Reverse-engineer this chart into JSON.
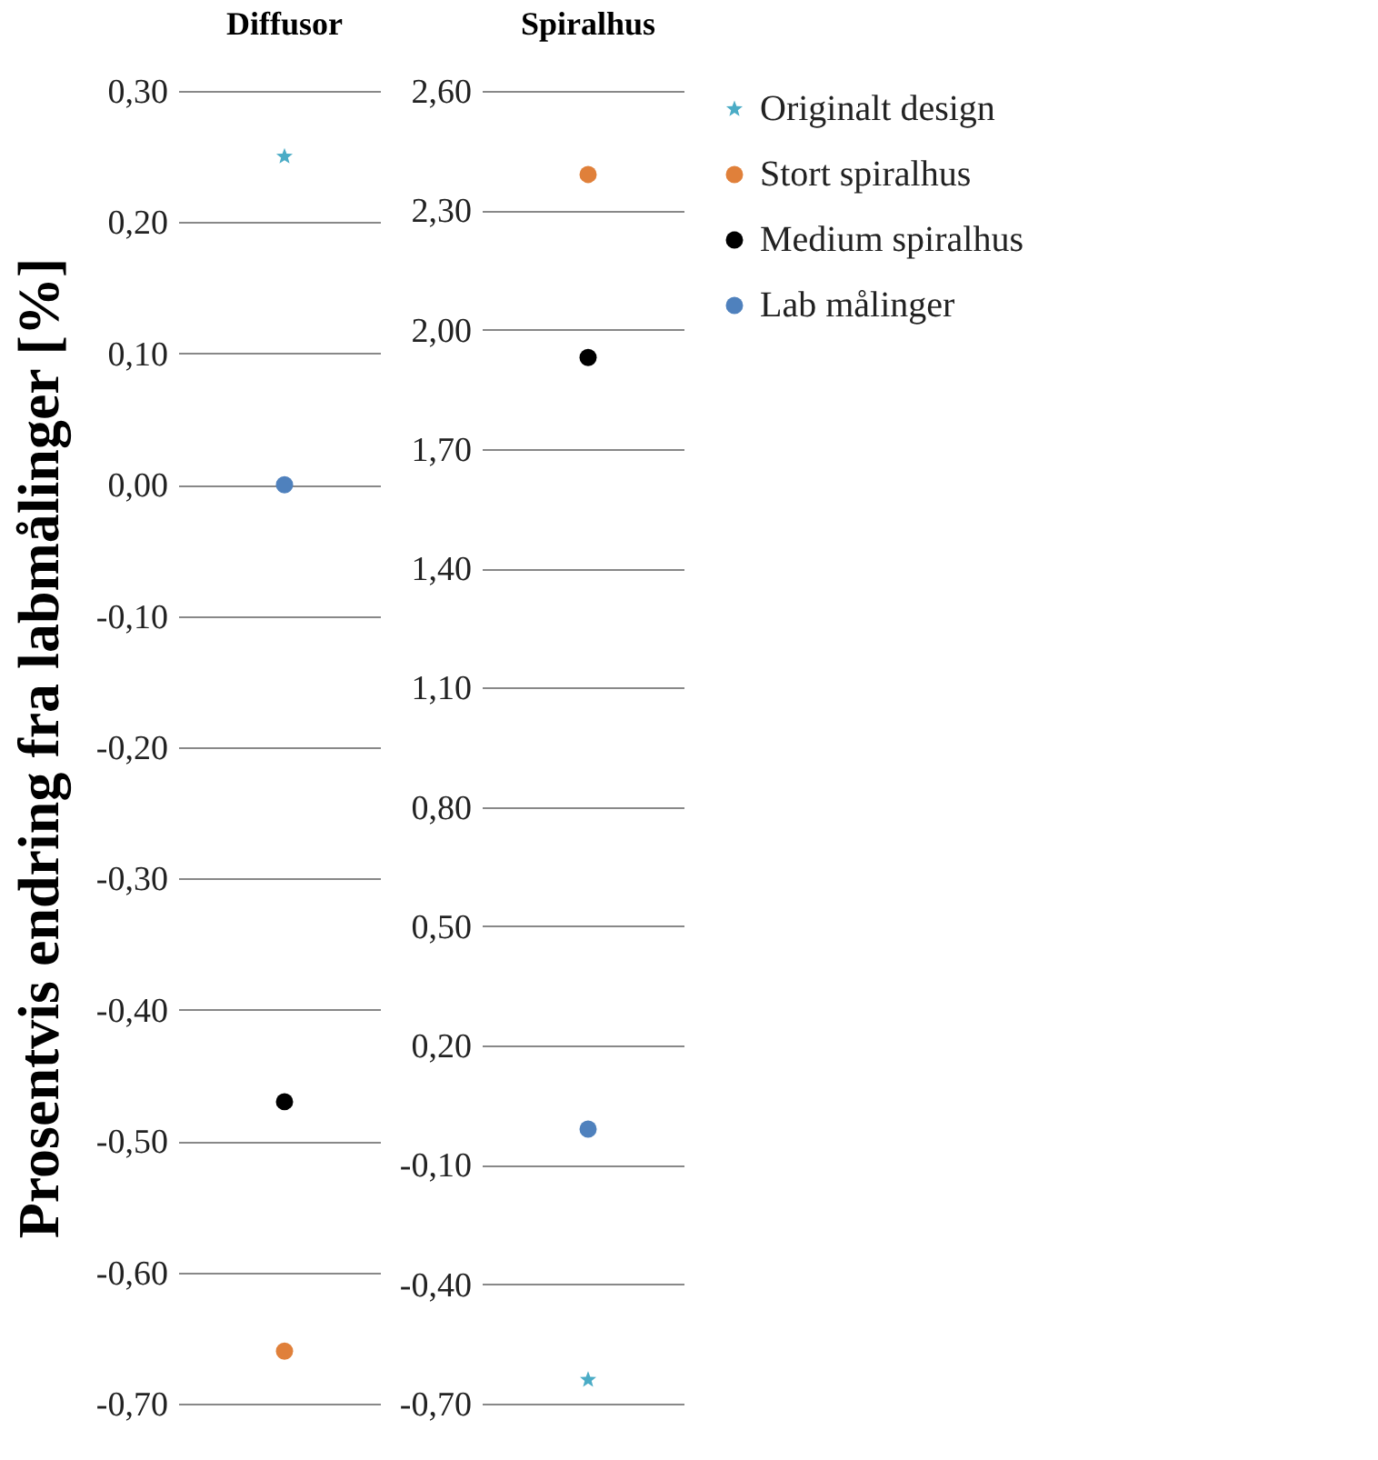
{
  "chart_data": [
    {
      "type": "scatter",
      "title": "Diffusor",
      "ylabel": "Prosentvis endring fra labmålinger [%]",
      "categories": [
        null
      ],
      "ylim": [
        -0.7,
        0.3
      ],
      "yticks": [
        {
          "value": 0.3,
          "label": "0,30"
        },
        {
          "value": 0.2,
          "label": "0,20"
        },
        {
          "value": 0.1,
          "label": "0,10"
        },
        {
          "value": 0,
          "label": "0,00"
        },
        {
          "value": -0.1,
          "label": "-0,10"
        },
        {
          "value": -0.2,
          "label": "-0,20"
        },
        {
          "value": -0.3,
          "label": "-0,30"
        },
        {
          "value": -0.4,
          "label": "-0,40"
        },
        {
          "value": -0.5,
          "label": "-0,50"
        },
        {
          "value": -0.6,
          "label": "-0,60"
        },
        {
          "value": -0.7,
          "label": "-0,70"
        }
      ],
      "grid": "y",
      "series": [
        {
          "color": "#4bacc6",
          "marker": "star",
          "values": [
            0.25
          ]
        },
        {
          "color": "#e0803a",
          "marker": "circle",
          "values": [
            -0.66
          ]
        },
        {
          "color": "#000000",
          "marker": "circle",
          "values": [
            -0.47
          ]
        },
        {
          "color": "#4f81bd",
          "marker": "circle",
          "values": [
            0.0
          ]
        }
      ]
    },
    {
      "type": "scatter",
      "title": "Spiralhus",
      "categories": [
        null
      ],
      "ylim": [
        -0.7,
        2.6
      ],
      "yticks": [
        {
          "value": 2.6,
          "label": "2,60"
        },
        {
          "value": 2.3,
          "label": "2,30"
        },
        {
          "value": 2.0,
          "label": "2,00"
        },
        {
          "value": 1.7,
          "label": "1,70"
        },
        {
          "value": 1.4,
          "label": "1,40"
        },
        {
          "value": 1.1,
          "label": "1,10"
        },
        {
          "value": 0.8,
          "label": "0,80"
        },
        {
          "value": 0.5,
          "label": "0,50"
        },
        {
          "value": 0.2,
          "label": "0,20"
        },
        {
          "value": -0.1,
          "label": "-0,10"
        },
        {
          "value": -0.4,
          "label": "-0,40"
        },
        {
          "value": -0.7,
          "label": "-0,70"
        }
      ],
      "grid": "y",
      "legend": "right",
      "series": [
        {
          "name": "Originalt design",
          "color": "#4bacc6",
          "marker": "star",
          "values": [
            -0.64
          ]
        },
        {
          "name": "Stort spiralhus",
          "color": "#e0803a",
          "marker": "circle",
          "values": [
            2.39
          ]
        },
        {
          "name": "Medium spiralhus",
          "color": "#000000",
          "marker": "circle",
          "values": [
            1.93
          ]
        },
        {
          "name": "Lab målinger",
          "color": "#4f81bd",
          "marker": "circle",
          "values": [
            -0.01
          ]
        }
      ]
    }
  ]
}
